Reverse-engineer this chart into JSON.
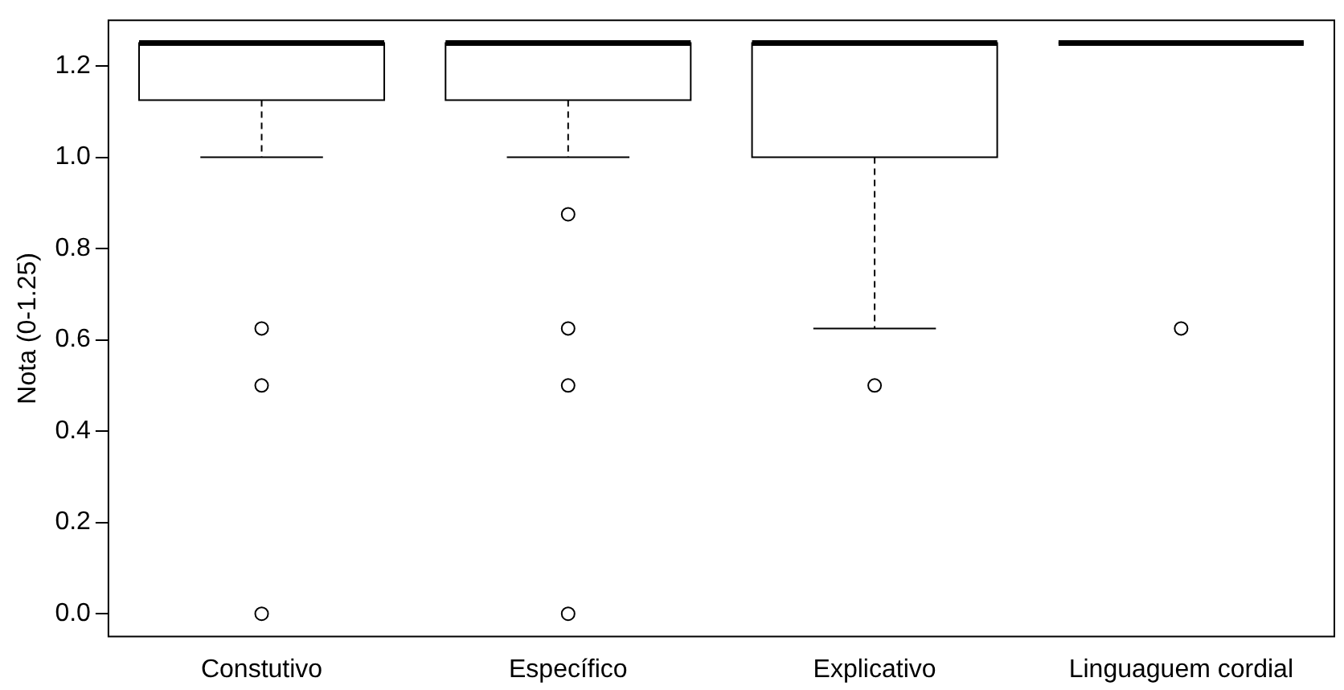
{
  "chart_data": {
    "type": "box",
    "ylabel": "Nota (0-1.25)",
    "categories": [
      "Constutivo",
      "Específico",
      "Explicativo",
      "Linguaguem cordial"
    ],
    "boxes": [
      {
        "low": 1.0,
        "q1": 1.125,
        "median": 1.25,
        "q3": 1.25,
        "high": 1.25,
        "outliers": [
          0.625,
          0.5,
          0.0
        ]
      },
      {
        "low": 1.0,
        "q1": 1.125,
        "median": 1.25,
        "q3": 1.25,
        "high": 1.25,
        "outliers": [
          0.875,
          0.625,
          0.5,
          0.0
        ]
      },
      {
        "low": 0.625,
        "q1": 1.0,
        "median": 1.25,
        "q3": 1.25,
        "high": 1.25,
        "outliers": [
          0.5
        ]
      },
      {
        "low": 1.25,
        "q1": 1.25,
        "median": 1.25,
        "q3": 1.25,
        "high": 1.25,
        "outliers": [
          0.625
        ]
      }
    ],
    "ylim": [
      -0.05,
      1.3
    ],
    "yticks": [
      {
        "value": 0,
        "label": "0.0"
      },
      {
        "value": 0.2,
        "label": "0.2"
      },
      {
        "value": 0.4,
        "label": "0.4"
      },
      {
        "value": 0.6,
        "label": "0.6"
      },
      {
        "value": 0.8,
        "label": "0.8"
      },
      {
        "value": 1.0,
        "label": "1.0"
      },
      {
        "value": 1.2,
        "label": "1.2"
      }
    ],
    "grid": false
  }
}
